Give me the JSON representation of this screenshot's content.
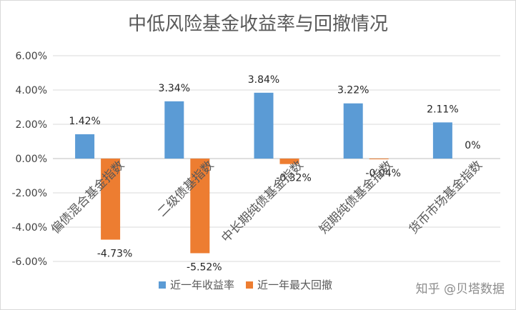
{
  "chart_data": {
    "type": "bar",
    "title": "中低风险基金收益率与回撤情况",
    "categories": [
      "偏债混合基金指数",
      "二级债基指数",
      "中长期纯债基金指数",
      "短期纯债基金指数",
      "货币市场基金指数"
    ],
    "series": [
      {
        "name": "近一年收益率",
        "color": "#5b9bd5",
        "values": [
          1.42,
          3.34,
          3.84,
          3.22,
          2.11
        ],
        "labels": [
          "1.42%",
          "3.34%",
          "3.84%",
          "3.22%",
          "2.11%"
        ]
      },
      {
        "name": "近一年最大回撤",
        "color": "#ed7d31",
        "values": [
          -4.73,
          -5.52,
          -0.32,
          -0.04,
          0
        ],
        "labels": [
          "-4.73%",
          "-5.52%",
          "-0.32%",
          "-0.04%",
          "0%"
        ]
      }
    ],
    "ylim": [
      -6,
      6
    ],
    "yticks": [
      6,
      4,
      2,
      0,
      -2,
      -4,
      -6
    ],
    "ytick_labels": [
      "6.00%",
      "4.00%",
      "2.00%",
      "0.00%",
      "-2.00%",
      "-4.00%",
      "-6.00%"
    ],
    "grid": true,
    "legend_position": "bottom",
    "xlabel": "",
    "ylabel": ""
  },
  "watermark": "知乎 @贝塔数据"
}
